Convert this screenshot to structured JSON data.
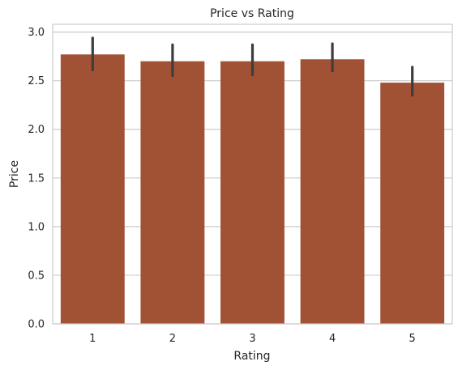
{
  "chart_data": {
    "type": "bar",
    "title": "Price vs Rating",
    "xlabel": "Rating",
    "ylabel": "Price",
    "categories": [
      "1",
      "2",
      "3",
      "4",
      "5"
    ],
    "values": [
      2.77,
      2.7,
      2.7,
      2.72,
      2.48
    ],
    "error_low": [
      2.61,
      2.55,
      2.56,
      2.6,
      2.35
    ],
    "error_high": [
      2.94,
      2.87,
      2.87,
      2.88,
      2.64
    ],
    "ylim": [
      0,
      3.08
    ],
    "yticks": [
      "0.0",
      "0.5",
      "1.0",
      "1.5",
      "2.0",
      "2.5",
      "3.0"
    ],
    "grid": "horizontal",
    "colors": {
      "bar": "#a15235",
      "errorbar": "#3d3d3d",
      "grid": "#cccccc",
      "spine": "#cccccc"
    }
  }
}
